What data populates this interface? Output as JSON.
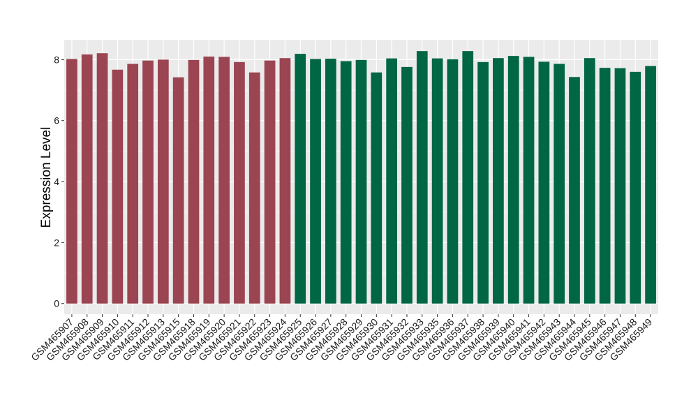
{
  "chart_data": {
    "type": "bar",
    "title": "",
    "xlabel": "",
    "ylabel": "Expression Level",
    "ylim": [
      -0.35,
      8.65
    ],
    "yticks": [
      0,
      2,
      4,
      6,
      8
    ],
    "grid": true,
    "legend": "none",
    "categories": [
      "GSM465907",
      "GSM465908",
      "GSM465909",
      "GSM465910",
      "GSM465911",
      "GSM465912",
      "GSM465913",
      "GSM465915",
      "GSM465918",
      "GSM465919",
      "GSM465920",
      "GSM465921",
      "GSM465922",
      "GSM465923",
      "GSM465924",
      "GSM465925",
      "GSM465926",
      "GSM465927",
      "GSM465928",
      "GSM465929",
      "GSM465930",
      "GSM465931",
      "GSM465932",
      "GSM465933",
      "GSM465935",
      "GSM465936",
      "GSM465937",
      "GSM465938",
      "GSM465939",
      "GSM465940",
      "GSM465941",
      "GSM465942",
      "GSM465943",
      "GSM465944",
      "GSM465945",
      "GSM465946",
      "GSM465947",
      "GSM465948",
      "GSM465949"
    ],
    "values": [
      8.02,
      8.17,
      8.21,
      7.67,
      7.86,
      7.97,
      8.0,
      7.42,
      7.99,
      8.1,
      8.09,
      7.92,
      7.58,
      7.97,
      8.05,
      8.19,
      8.02,
      8.03,
      7.95,
      7.99,
      7.58,
      8.04,
      7.76,
      8.28,
      8.04,
      8.01,
      8.28,
      7.92,
      8.05,
      8.12,
      8.09,
      7.93,
      7.86,
      7.43,
      8.05,
      7.73,
      7.72,
      7.6,
      7.79
    ],
    "groups": [
      15,
      24
    ],
    "colors": {
      "panel_background": "#ebebeb",
      "grid_line": "#ffffff",
      "group_1": "#9b4452",
      "group_2": "#006644"
    }
  }
}
